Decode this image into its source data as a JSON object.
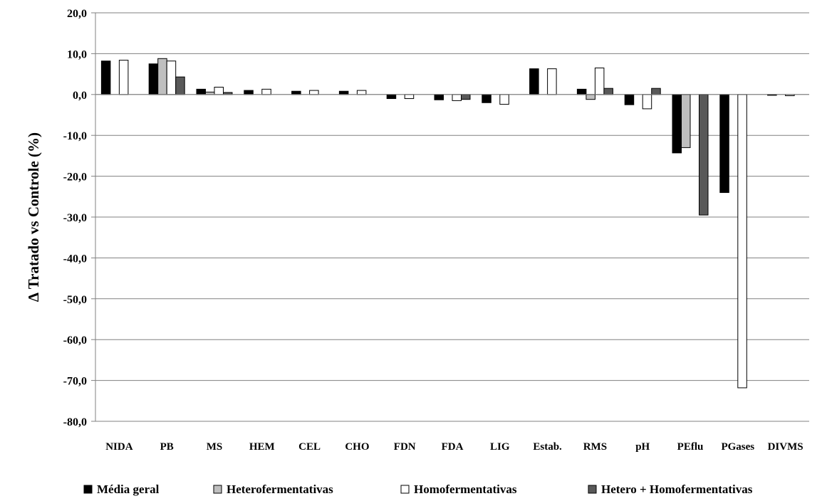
{
  "chart_data": {
    "type": "bar",
    "title": "",
    "xlabel": "",
    "ylabel": "∆ Tratado vs Controle (%)",
    "ylim": [
      -80,
      20
    ],
    "yticks": [
      20,
      10,
      0,
      -10,
      -20,
      -30,
      -40,
      -50,
      -60,
      -70,
      -80
    ],
    "ytick_labels": [
      "20,0",
      "10,0",
      "0,0",
      "-10,0",
      "-20,0",
      "-30,0",
      "-40,0",
      "-50,0",
      "-60,0",
      "-70,0",
      "-80,0"
    ],
    "grid": true,
    "legend_position": "bottom",
    "categories": [
      "NIDA",
      "PB",
      "MS",
      "HEM",
      "CEL",
      "CHO",
      "FDN",
      "FDA",
      "LIG",
      "Estab.",
      "RMS",
      "pH",
      "PEflu",
      "PGases",
      "DIVMS"
    ],
    "series": [
      {
        "name": "Média geral",
        "color": "#000000",
        "values": [
          8.2,
          7.5,
          1.3,
          1.0,
          0.8,
          0.8,
          -1.0,
          -1.3,
          -2.0,
          6.3,
          1.3,
          -2.5,
          -14.3,
          -24.0,
          -0.2
        ]
      },
      {
        "name": "Heterofermentativas",
        "color": "#bfbfbf",
        "values": [
          null,
          8.8,
          0.6,
          null,
          null,
          null,
          null,
          null,
          null,
          null,
          -1.2,
          null,
          -13.0,
          null,
          null
        ]
      },
      {
        "name": "Homofermentativas",
        "color": "#ffffff",
        "values": [
          8.4,
          8.2,
          1.8,
          1.3,
          1.0,
          1.0,
          -1.0,
          -1.5,
          -2.4,
          6.3,
          6.5,
          -3.5,
          null,
          -71.8,
          -0.3
        ]
      },
      {
        "name": "Hetero + Homofermentativas",
        "color": "#595959",
        "values": [
          null,
          4.3,
          0.5,
          null,
          null,
          null,
          null,
          -1.2,
          null,
          null,
          1.5,
          1.5,
          -29.5,
          null,
          null
        ]
      }
    ]
  }
}
